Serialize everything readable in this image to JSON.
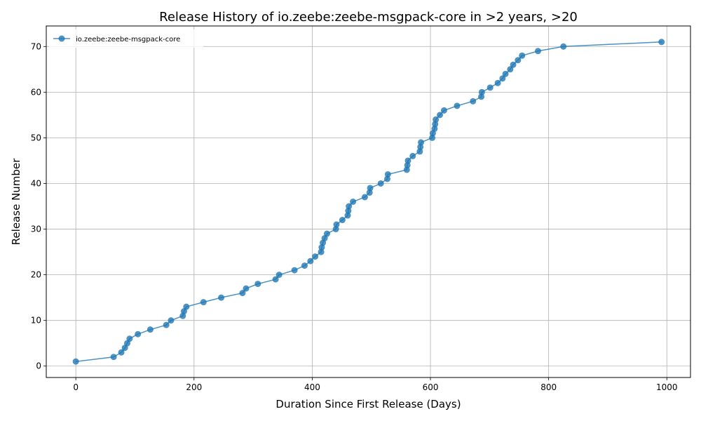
{
  "chart_data": {
    "type": "line",
    "title": "Release History of io.zeebe:zeebe-msgpack-core in >2 years, >20",
    "xlabel": "Duration Since First Release (Days)",
    "ylabel": "Release Number",
    "xlim": [
      -50,
      1040
    ],
    "ylim": [
      -2.5,
      74.5
    ],
    "xticks": [
      0,
      200,
      400,
      600,
      800,
      1000
    ],
    "yticks": [
      0,
      10,
      20,
      30,
      40,
      50,
      60,
      70
    ],
    "grid": true,
    "legend_position": "top-left",
    "color": "#1f77b4",
    "series": [
      {
        "name": "io.zeebe:zeebe-msgpack-core",
        "x": [
          0,
          64,
          77,
          83,
          87,
          91,
          105,
          126,
          153,
          161,
          181,
          183,
          187,
          216,
          246,
          282,
          288,
          308,
          338,
          344,
          370,
          387,
          397,
          405,
          415,
          416,
          418,
          421,
          425,
          440,
          441,
          451,
          460,
          461,
          462,
          469,
          489,
          497,
          498,
          516,
          527,
          528,
          560,
          561,
          562,
          570,
          582,
          583,
          584,
          603,
          604,
          607,
          608,
          609,
          616,
          623,
          645,
          672,
          686,
          687,
          701,
          714,
          722,
          727,
          735,
          740,
          748,
          755,
          782,
          825,
          991
        ],
        "y": [
          1,
          2,
          3,
          4,
          5,
          6,
          7,
          8,
          9,
          10,
          11,
          12,
          13,
          14,
          15,
          16,
          17,
          18,
          19,
          20,
          21,
          22,
          23,
          24,
          25,
          26,
          27,
          28,
          29,
          30,
          31,
          32,
          33,
          34,
          35,
          36,
          37,
          38,
          39,
          40,
          41,
          42,
          43,
          44,
          45,
          46,
          47,
          48,
          49,
          50,
          51,
          52,
          53,
          54,
          55,
          56,
          57,
          58,
          59,
          60,
          61,
          62,
          63,
          64,
          65,
          66,
          67,
          68,
          69,
          70,
          71
        ]
      }
    ]
  }
}
